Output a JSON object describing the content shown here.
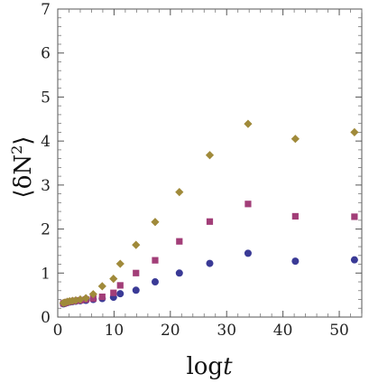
{
  "chart_data": {
    "type": "scatter",
    "xlabel_parts": [
      "log",
      "t"
    ],
    "ylabel_parts": [
      "⟨δN",
      "2",
      "⟩"
    ],
    "xlim": [
      0,
      54
    ],
    "ylim": [
      0,
      7
    ],
    "x_ticks": [
      0,
      10,
      20,
      30,
      40,
      50
    ],
    "y_ticks": [
      0,
      1,
      2,
      3,
      4,
      5,
      6,
      7
    ],
    "grid": false,
    "colors": {
      "navy": "#3a3a96",
      "magenta": "#a23e78",
      "olive": "#a08a3a"
    },
    "series": [
      {
        "marker": "circle",
        "color": "#3a3a96",
        "x": [
          1.0,
          1.3,
          1.7,
          2.1,
          2.6,
          3.2,
          4.0,
          5.0,
          6.3,
          7.9,
          9.9,
          11.1,
          13.9,
          17.3,
          21.6,
          27.0,
          33.8,
          42.2,
          52.7
        ],
        "y": [
          0.3,
          0.31,
          0.33,
          0.34,
          0.35,
          0.36,
          0.37,
          0.38,
          0.4,
          0.42,
          0.45,
          0.53,
          0.61,
          0.8,
          1.0,
          1.22,
          1.45,
          1.27,
          1.3
        ]
      },
      {
        "marker": "square",
        "color": "#a23e78",
        "x": [
          1.0,
          1.3,
          1.7,
          2.1,
          2.6,
          3.2,
          4.0,
          5.0,
          6.3,
          7.9,
          9.9,
          11.1,
          13.9,
          17.3,
          21.6,
          27.0,
          33.8,
          42.2,
          52.7
        ],
        "y": [
          0.31,
          0.32,
          0.34,
          0.35,
          0.36,
          0.37,
          0.38,
          0.4,
          0.42,
          0.46,
          0.55,
          0.72,
          1.0,
          1.29,
          1.72,
          2.17,
          2.57,
          2.29,
          2.28
        ]
      },
      {
        "marker": "diamond",
        "color": "#a08a3a",
        "x": [
          1.0,
          1.3,
          1.7,
          2.1,
          2.6,
          3.2,
          4.0,
          5.0,
          6.3,
          7.9,
          9.9,
          11.1,
          13.9,
          17.3,
          21.6,
          27.0,
          33.8,
          42.2,
          52.7
        ],
        "y": [
          0.32,
          0.33,
          0.35,
          0.36,
          0.37,
          0.38,
          0.4,
          0.43,
          0.52,
          0.7,
          0.87,
          1.21,
          1.64,
          2.16,
          2.84,
          3.68,
          4.39,
          4.05,
          4.2
        ]
      }
    ]
  }
}
